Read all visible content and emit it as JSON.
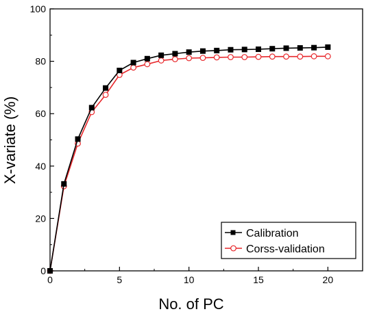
{
  "chart_data": {
    "type": "line",
    "title": "",
    "xlabel": "No. of PC",
    "ylabel": "X-variate (%)",
    "xlim": [
      0,
      22.5
    ],
    "ylim": [
      0,
      100
    ],
    "x_ticks": [
      0,
      5,
      10,
      15,
      20
    ],
    "x_tick_labels": [
      "0",
      "5",
      "10",
      "15",
      "20"
    ],
    "y_ticks": [
      0,
      20,
      40,
      60,
      80,
      100
    ],
    "y_tick_labels": [
      "0",
      "20",
      "40",
      "60",
      "80",
      "100"
    ],
    "grid": false,
    "legend_position": "bottom-right",
    "x": [
      0,
      1,
      2,
      3,
      4,
      5,
      6,
      7,
      8,
      9,
      10,
      11,
      12,
      13,
      14,
      15,
      16,
      17,
      18,
      19,
      20
    ],
    "series": [
      {
        "name": "Calibration",
        "color": "#000000",
        "marker": "filled-square",
        "values": [
          0,
          33.2,
          50.3,
          62.3,
          69.8,
          76.5,
          79.5,
          81.0,
          82.3,
          82.9,
          83.5,
          83.9,
          84.1,
          84.4,
          84.5,
          84.6,
          84.8,
          85.0,
          85.1,
          85.2,
          85.4
        ]
      },
      {
        "name": "Corss-validation",
        "color": "#e8262a",
        "marker": "open-circle",
        "values": [
          0,
          32.3,
          48.6,
          60.6,
          67.2,
          74.8,
          77.6,
          78.9,
          80.3,
          80.8,
          81.2,
          81.3,
          81.5,
          81.6,
          81.6,
          81.7,
          81.8,
          81.8,
          81.8,
          81.9,
          81.9
        ]
      }
    ]
  }
}
